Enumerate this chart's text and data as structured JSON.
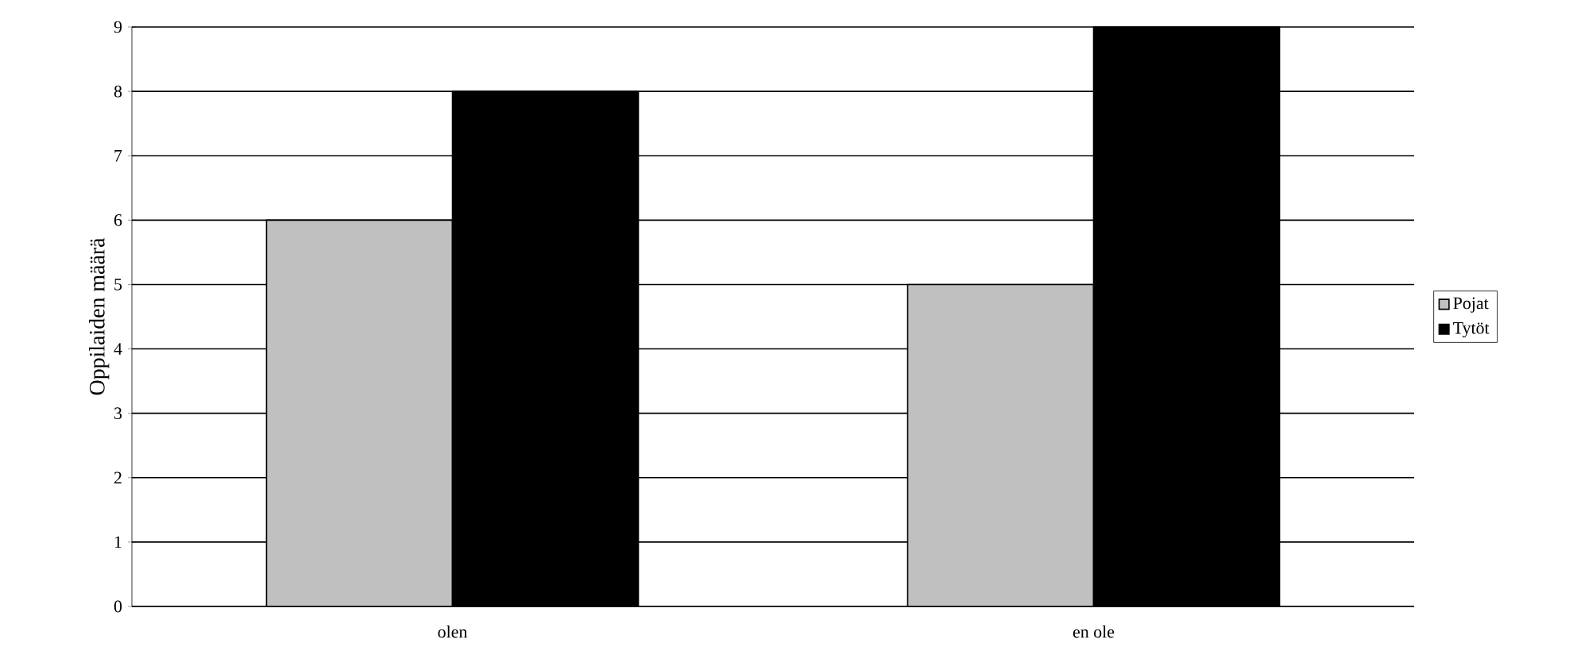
{
  "chart_data": {
    "type": "bar",
    "ylabel": "Oppilaiden määrä",
    "categories": [
      "olen",
      "en ole"
    ],
    "series": [
      {
        "name": "Pojat",
        "color": "#c0c0c0",
        "values": [
          6,
          5
        ]
      },
      {
        "name": "Tytöt",
        "color": "#000000",
        "values": [
          8,
          9
        ]
      }
    ],
    "ylim": [
      0,
      9
    ],
    "yticks": [
      0,
      1,
      2,
      3,
      4,
      5,
      6,
      7,
      8,
      9
    ],
    "grid": "y",
    "legend": "right"
  }
}
